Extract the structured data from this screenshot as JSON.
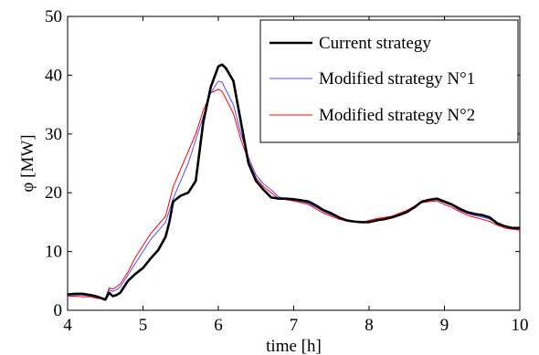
{
  "chart_data": {
    "type": "line",
    "title": "",
    "xlabel": "time [h]",
    "ylabel": "φ [MW]",
    "xlim": [
      4,
      10
    ],
    "ylim": [
      0,
      50
    ],
    "xticks": [
      "4",
      "5",
      "6",
      "7",
      "8",
      "9",
      "10"
    ],
    "yticks": [
      "0",
      "10",
      "20",
      "30",
      "40",
      "50"
    ],
    "grid": false,
    "legend_position": "top-right",
    "series": [
      {
        "name": "Current strategy",
        "color": "#000000",
        "x": [
          4.0,
          4.1,
          4.2,
          4.3,
          4.4,
          4.5,
          4.55,
          4.6,
          4.65,
          4.7,
          4.8,
          4.9,
          5.0,
          5.1,
          5.2,
          5.3,
          5.35,
          5.4,
          5.5,
          5.6,
          5.7,
          5.8,
          5.9,
          6.0,
          6.05,
          6.1,
          6.2,
          6.3,
          6.4,
          6.5,
          6.6,
          6.7,
          6.8,
          6.9,
          7.0,
          7.1,
          7.2,
          7.3,
          7.4,
          7.5,
          7.6,
          7.7,
          7.8,
          7.9,
          8.0,
          8.1,
          8.2,
          8.3,
          8.4,
          8.5,
          8.6,
          8.7,
          8.8,
          8.9,
          9.0,
          9.1,
          9.2,
          9.3,
          9.4,
          9.5,
          9.6,
          9.7,
          9.8,
          9.9,
          10.0
        ],
        "y": [
          2.7,
          2.8,
          2.8,
          2.6,
          2.3,
          1.8,
          3.0,
          2.4,
          2.6,
          3.0,
          5.0,
          6.2,
          7.2,
          8.8,
          10.2,
          12.5,
          15.0,
          18.5,
          19.5,
          20.0,
          22.0,
          32.0,
          38.0,
          41.5,
          41.8,
          41.2,
          39.0,
          32.0,
          25.0,
          22.0,
          20.5,
          19.2,
          19.0,
          19.0,
          18.9,
          18.7,
          18.5,
          17.8,
          17.0,
          16.5,
          15.8,
          15.3,
          15.1,
          15.0,
          15.0,
          15.3,
          15.5,
          15.8,
          16.2,
          16.7,
          17.5,
          18.5,
          18.8,
          19.0,
          18.5,
          18.0,
          17.3,
          16.7,
          16.4,
          16.2,
          15.8,
          14.8,
          14.3,
          14.0,
          14.0
        ]
      },
      {
        "name": "Modified strategy N°1",
        "color": "#4d4dff",
        "x": [
          4.0,
          4.1,
          4.2,
          4.3,
          4.4,
          4.5,
          4.55,
          4.6,
          4.65,
          4.7,
          4.8,
          4.9,
          5.0,
          5.1,
          5.2,
          5.3,
          5.4,
          5.5,
          5.6,
          5.7,
          5.8,
          5.9,
          6.0,
          6.05,
          6.1,
          6.2,
          6.3,
          6.4,
          6.5,
          6.6,
          6.7,
          6.8,
          6.9,
          7.0,
          7.1,
          7.2,
          7.3,
          7.4,
          7.5,
          7.6,
          7.7,
          7.8,
          7.9,
          8.0,
          8.1,
          8.2,
          8.3,
          8.4,
          8.5,
          8.6,
          8.7,
          8.8,
          8.9,
          9.0,
          9.1,
          9.2,
          9.3,
          9.4,
          9.5,
          9.6,
          9.7,
          9.8,
          9.9,
          10.0
        ],
        "y": [
          2.6,
          2.6,
          2.6,
          2.4,
          2.2,
          2.0,
          3.5,
          3.2,
          3.5,
          4.0,
          6.0,
          8.0,
          10.0,
          12.0,
          13.5,
          15.0,
          19.0,
          22.0,
          25.0,
          29.0,
          33.0,
          37.0,
          39.0,
          38.8,
          37.5,
          35.0,
          30.0,
          26.0,
          23.0,
          21.5,
          20.5,
          19.3,
          19.0,
          18.7,
          18.5,
          18.2,
          17.5,
          16.8,
          16.2,
          15.7,
          15.3,
          15.1,
          14.9,
          15.0,
          15.3,
          15.5,
          15.8,
          16.2,
          16.7,
          17.5,
          18.5,
          18.7,
          18.8,
          18.3,
          17.8,
          17.0,
          16.5,
          16.1,
          15.9,
          15.5,
          14.8,
          14.2,
          13.9,
          13.8
        ]
      },
      {
        "name": "Modified strategy N°2",
        "color": "#ff0000",
        "x": [
          4.0,
          4.1,
          4.2,
          4.3,
          4.4,
          4.5,
          4.55,
          4.6,
          4.65,
          4.7,
          4.8,
          4.9,
          5.0,
          5.1,
          5.2,
          5.3,
          5.4,
          5.5,
          5.6,
          5.7,
          5.8,
          5.9,
          6.0,
          6.05,
          6.1,
          6.2,
          6.3,
          6.4,
          6.5,
          6.6,
          6.7,
          6.8,
          6.9,
          7.0,
          7.1,
          7.2,
          7.3,
          7.4,
          7.5,
          7.6,
          7.7,
          7.8,
          7.9,
          8.0,
          8.1,
          8.2,
          8.3,
          8.4,
          8.5,
          8.6,
          8.7,
          8.8,
          8.9,
          9.0,
          9.1,
          9.2,
          9.3,
          9.4,
          9.5,
          9.6,
          9.7,
          9.8,
          9.9,
          10.0
        ],
        "y": [
          2.4,
          2.4,
          2.3,
          2.3,
          2.0,
          2.0,
          3.8,
          3.6,
          4.0,
          4.5,
          6.5,
          9.0,
          11.0,
          13.0,
          14.5,
          16.0,
          21.0,
          24.0,
          27.0,
          30.0,
          34.0,
          37.0,
          37.6,
          37.2,
          36.0,
          33.5,
          29.0,
          25.5,
          22.5,
          21.0,
          20.0,
          19.0,
          18.8,
          18.6,
          18.3,
          18.0,
          17.2,
          16.5,
          16.0,
          15.5,
          15.2,
          15.0,
          14.9,
          15.3,
          15.6,
          15.8,
          16.0,
          16.5,
          17.0,
          17.7,
          18.3,
          18.5,
          18.6,
          18.0,
          17.5,
          16.8,
          16.2,
          15.8,
          15.5,
          15.1,
          14.5,
          14.0,
          13.8,
          13.6
        ]
      }
    ]
  }
}
